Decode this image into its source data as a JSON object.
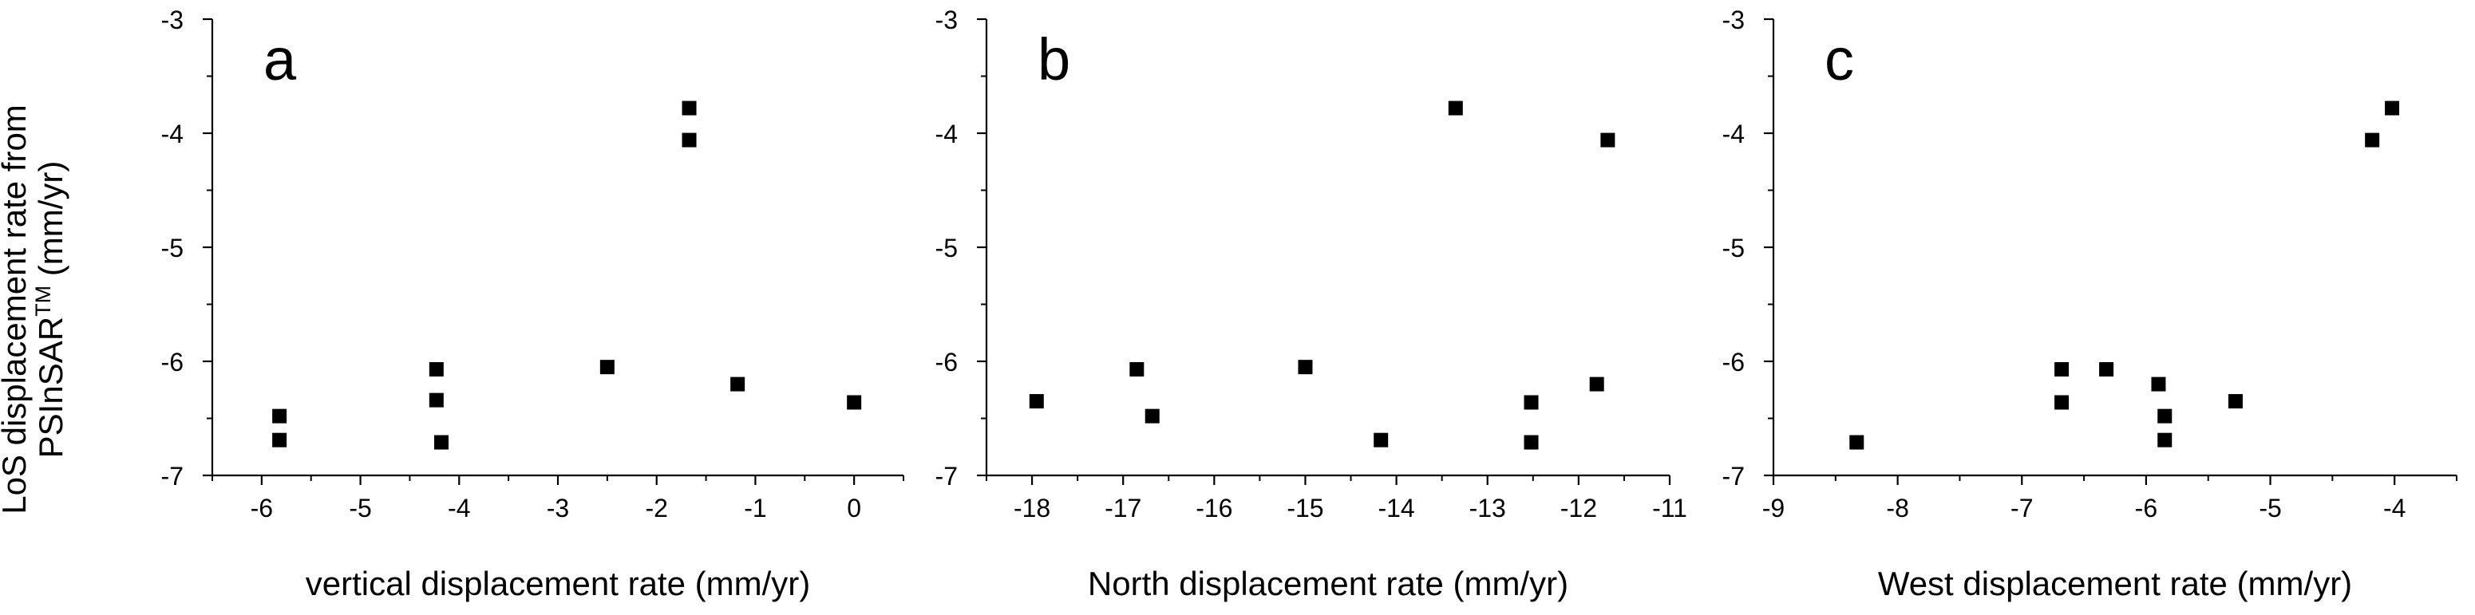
{
  "y_axis_label": {
    "line1": "LoS displacement rate from",
    "line2_main": "PSInSAR",
    "line2_sup": "TM",
    "line2_unit": " (mm/yr)"
  },
  "chart_data": [
    {
      "type": "scatter",
      "panel": "a",
      "xlabel": "vertical displacement rate (mm/yr)",
      "ylabel": "LoS displacement rate from PSInSAR™ (mm/yr)",
      "xlim": [
        -6.5,
        0.5
      ],
      "ylim": [
        -7,
        -3
      ],
      "xticks": [
        -6,
        -5,
        -4,
        -3,
        -2,
        -1,
        0
      ],
      "yticks": [
        -3,
        -4,
        -5,
        -6,
        -7
      ],
      "marker": "square",
      "marker_color": "#000000",
      "grid": false,
      "points": [
        {
          "x": -5.82,
          "y": -6.48
        },
        {
          "x": -5.82,
          "y": -6.69
        },
        {
          "x": -4.23,
          "y": -6.07
        },
        {
          "x": -4.23,
          "y": -6.34
        },
        {
          "x": -4.18,
          "y": -6.71
        },
        {
          "x": -2.5,
          "y": -6.05
        },
        {
          "x": -1.67,
          "y": -3.78
        },
        {
          "x": -1.67,
          "y": -4.06
        },
        {
          "x": -1.18,
          "y": -6.2
        },
        {
          "x": 0.0,
          "y": -6.36
        }
      ]
    },
    {
      "type": "scatter",
      "panel": "b",
      "xlabel": "North displacement rate (mm/yr)",
      "xlim": [
        -18.5,
        -11
      ],
      "ylim": [
        -7,
        -3
      ],
      "xticks": [
        -18,
        -17,
        -16,
        -15,
        -14,
        -13,
        -12,
        -11
      ],
      "yticks": [
        -3,
        -4,
        -5,
        -6,
        -7
      ],
      "marker": "square",
      "marker_color": "#000000",
      "grid": false,
      "points": [
        {
          "x": -17.95,
          "y": -6.35
        },
        {
          "x": -16.85,
          "y": -6.07
        },
        {
          "x": -16.68,
          "y": -6.48
        },
        {
          "x": -15.0,
          "y": -6.05
        },
        {
          "x": -14.17,
          "y": -6.69
        },
        {
          "x": -13.35,
          "y": -3.78
        },
        {
          "x": -12.52,
          "y": -6.36
        },
        {
          "x": -12.52,
          "y": -6.71
        },
        {
          "x": -11.8,
          "y": -6.2
        },
        {
          "x": -11.68,
          "y": -4.06
        }
      ]
    },
    {
      "type": "scatter",
      "panel": "c",
      "xlabel": "West displacement rate (mm/yr)",
      "xlim": [
        -9,
        -3.5
      ],
      "ylim": [
        -7,
        -3
      ],
      "xticks": [
        -9,
        -8,
        -7,
        -6,
        -5,
        -4
      ],
      "yticks": [
        -3,
        -4,
        -5,
        -6,
        -7
      ],
      "marker": "square",
      "marker_color": "#000000",
      "grid": false,
      "points": [
        {
          "x": -8.33,
          "y": -6.71
        },
        {
          "x": -6.68,
          "y": -6.07
        },
        {
          "x": -6.68,
          "y": -6.36
        },
        {
          "x": -6.32,
          "y": -6.07
        },
        {
          "x": -5.9,
          "y": -6.2
        },
        {
          "x": -5.85,
          "y": -6.48
        },
        {
          "x": -5.85,
          "y": -6.69
        },
        {
          "x": -5.28,
          "y": -6.35
        },
        {
          "x": -4.18,
          "y": -4.06
        },
        {
          "x": -4.02,
          "y": -3.78
        }
      ]
    }
  ]
}
